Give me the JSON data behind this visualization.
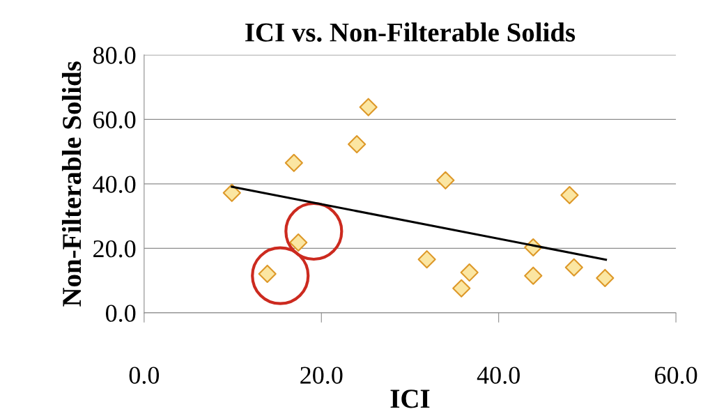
{
  "chart_data": {
    "type": "scatter",
    "title": "ICI vs. Non-Filterable Solids",
    "xlabel": "ICI",
    "ylabel": "Non-Filterable Solids",
    "xlim": [
      0,
      60
    ],
    "ylim": [
      0,
      80
    ],
    "xticks": [
      {
        "value": 0,
        "label": "0.0"
      },
      {
        "value": 20,
        "label": "20.0"
      },
      {
        "value": 40,
        "label": "40.0"
      },
      {
        "value": 60,
        "label": "60.0"
      }
    ],
    "yticks": [
      {
        "value": 0,
        "label": "0.0"
      },
      {
        "value": 20,
        "label": "20.0"
      },
      {
        "value": 40,
        "label": "40.0"
      },
      {
        "value": 60,
        "label": "60.0"
      },
      {
        "value": 80,
        "label": "80.0"
      }
    ],
    "grid": "y",
    "marker": "diamond",
    "legend": false,
    "series": [
      {
        "color": "#fbe6a2",
        "x": [
          9.9,
          13.9,
          16.9,
          17.4,
          24.0,
          25.3,
          31.9,
          34.0,
          35.8,
          36.7,
          43.9,
          43.9,
          48.0,
          48.5,
          52.0
        ],
        "values": [
          37.2,
          12.1,
          46.5,
          21.8,
          52.3,
          63.8,
          16.6,
          41.1,
          7.6,
          12.5,
          20.3,
          11.5,
          36.5,
          14.1,
          10.8
        ]
      },
      {
        "type": "line",
        "color": "#000000",
        "x": [
          9.9,
          52.1
        ],
        "values": [
          39.1,
          16.5
        ],
        "marker": "none",
        "line_style": "solid"
      }
    ]
  }
}
